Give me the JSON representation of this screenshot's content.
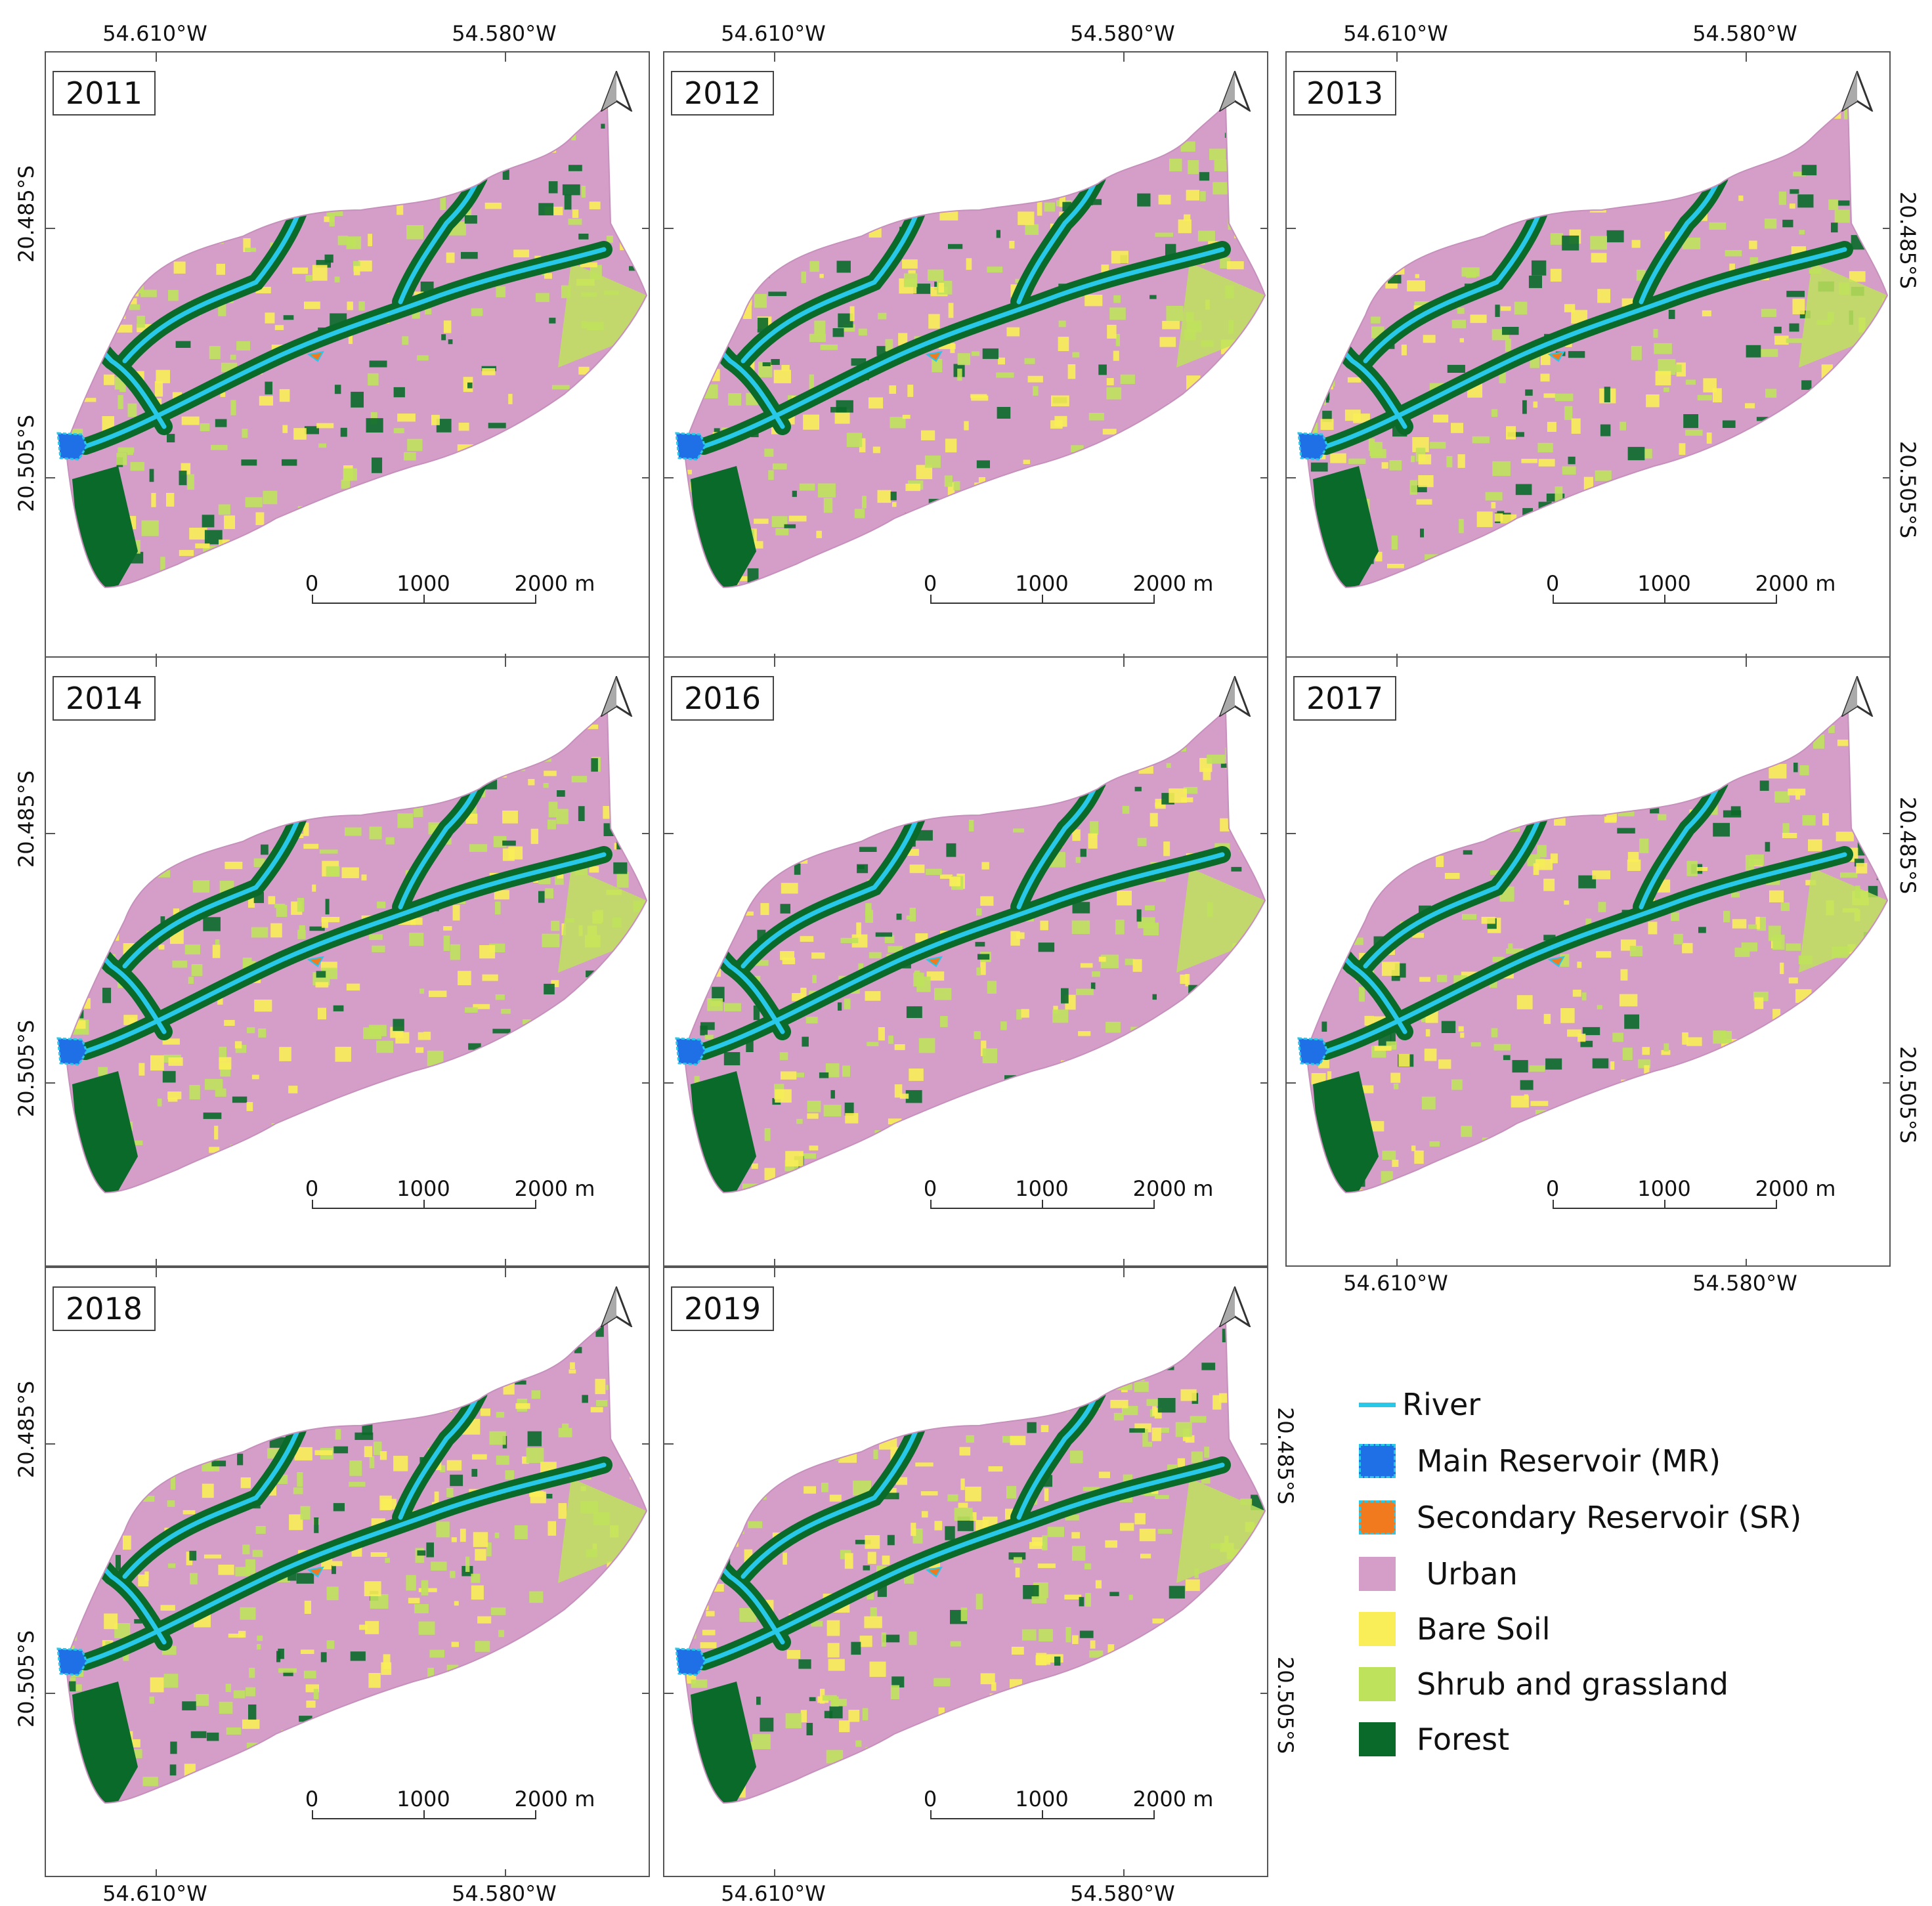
{
  "panels": [
    {
      "year": "2011",
      "lon_top": [
        "54.610°W",
        "54.580°W"
      ],
      "lon_bottom": [],
      "lat_left": [
        "20.485°S",
        "20.505°S"
      ],
      "lat_right": []
    },
    {
      "year": "2012",
      "lon_top": [
        "54.610°W",
        "54.580°W"
      ],
      "lon_bottom": [],
      "lat_left": [],
      "lat_right": []
    },
    {
      "year": "2013",
      "lon_top": [
        "54.610°W",
        "54.580°W"
      ],
      "lon_bottom": [],
      "lat_left": [],
      "lat_right": [
        "20.485°S",
        "20.505°S"
      ]
    },
    {
      "year": "2014",
      "lon_top": [],
      "lon_bottom": [],
      "lat_left": [
        "20.485°S",
        "20.505°S"
      ],
      "lat_right": []
    },
    {
      "year": "2016",
      "lon_top": [],
      "lon_bottom": [],
      "lat_left": [],
      "lat_right": []
    },
    {
      "year": "2017",
      "lon_top": [],
      "lon_bottom": [
        "54.610°W",
        "54.580°W"
      ],
      "lat_left": [],
      "lat_right": [
        "20.485°S",
        "20.505°S"
      ]
    },
    {
      "year": "2018",
      "lon_top": [],
      "lon_bottom": [
        "54.610°W",
        "54.580°W"
      ],
      "lat_left": [
        "20.485°S",
        "20.505°S"
      ],
      "lat_right": []
    },
    {
      "year": "2019",
      "lon_top": [],
      "lon_bottom": [
        "54.610°W",
        "54.580°W"
      ],
      "lat_left": [],
      "lat_right": [
        "20.485°S",
        "20.505°S"
      ]
    }
  ],
  "scale_labels": [
    "0",
    "1000",
    "2000 m"
  ],
  "legend": [
    {
      "label": "River",
      "kind": "line",
      "color": "#27c8e8"
    },
    {
      "label": "Main Reservoir (MR)",
      "kind": "box",
      "color": "#1f6fe6",
      "border": "#27c8e8"
    },
    {
      "label": "Secondary Reservoir (SR)",
      "kind": "box",
      "color": "#f27a1e",
      "border": "#27c8e8"
    },
    {
      "label": " Urban",
      "kind": "box",
      "color": "#d59ec9"
    },
    {
      "label": "Bare Soil",
      "kind": "box",
      "color": "#f9ee57"
    },
    {
      "label": "Shrub and grassland",
      "kind": "box",
      "color": "#bfe25c"
    },
    {
      "label": "Forest",
      "kind": "box",
      "color": "#0a6a2a"
    }
  ],
  "colors": {
    "urban": "#d59ec9",
    "bare_soil": "#f9ee57",
    "shrub": "#bfe25c",
    "forest": "#0a6a2a",
    "river": "#27c8e8",
    "main_reservoir": "#1f6fe6",
    "secondary_reservoir": "#f27a1e"
  },
  "icons": {
    "north": "north-arrow-icon"
  }
}
